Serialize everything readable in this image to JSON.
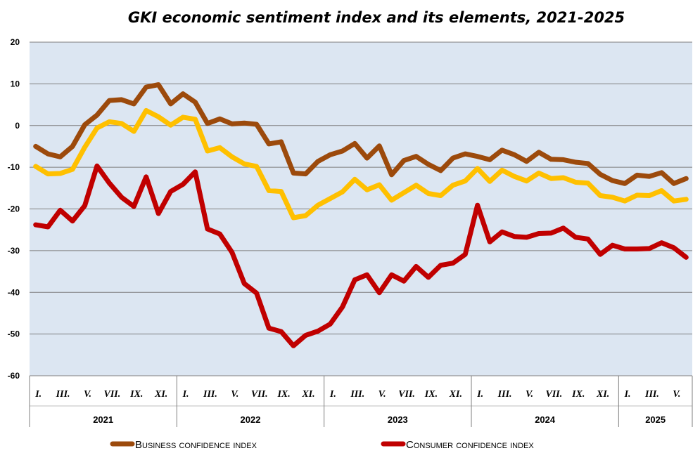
{
  "chart_data": {
    "type": "line",
    "title": "GKI economic sentiment index and its elements, 2021-2025",
    "ylim": [
      -60,
      20
    ],
    "yticks": [
      20,
      10,
      0,
      -10,
      -20,
      -30,
      -40,
      -50,
      -60
    ],
    "grid": true,
    "legend_position": "bottom",
    "years": [
      "2021",
      "2022",
      "2023",
      "2024",
      "2025"
    ],
    "month_labels": [
      "I.",
      "III.",
      "V.",
      "VII.",
      "IX.",
      "XI."
    ],
    "month_labels_last_year": [
      "I.",
      "III.",
      "V."
    ],
    "months_per_year": [
      12,
      12,
      12,
      12,
      6
    ],
    "series": [
      {
        "name": "BUSINESS CONFIDENCE INDEX",
        "legend_label": "Business confidence index",
        "in_legend": true,
        "color": "#9c4a0c",
        "values": [
          -5,
          -6.8,
          -7.5,
          -5,
          0.2,
          2.5,
          6,
          6.2,
          5.2,
          9.2,
          9.8,
          5.2,
          7.6,
          5.6,
          0.5,
          1.6,
          0.4,
          0.6,
          0.3,
          -4.4,
          -3.9,
          -11.4,
          -11.6,
          -8.6,
          -7,
          -6.1,
          -4.3,
          -7.8,
          -4.9,
          -11.8,
          -8.4,
          -7.4,
          -9.3,
          -10.8,
          -7.8,
          -6.8,
          -7.4,
          -8.2,
          -5.9,
          -7,
          -8.6,
          -6.4,
          -8.1,
          -8.2,
          -8.8,
          -9.1,
          -11.7,
          -13.2,
          -13.9,
          -11.9,
          -12.2,
          -11.3,
          -13.9,
          -12.7
        ]
      },
      {
        "name": "",
        "in_legend": false,
        "color": "#ffc000",
        "values": [
          -9.8,
          -11.6,
          -11.5,
          -10.5,
          -5.2,
          -0.6,
          0.9,
          0.5,
          -1.4,
          3.6,
          2.1,
          0.1,
          2,
          1.5,
          -6.1,
          -5.3,
          -7.5,
          -9.2,
          -9.8,
          -15.6,
          -15.8,
          -22.1,
          -21.6,
          -19.1,
          -17.5,
          -15.9,
          -12.9,
          -15.4,
          -14.2,
          -17.9,
          -16.1,
          -14.3,
          -16.3,
          -16.8,
          -14.3,
          -13.3,
          -10.3,
          -13.4,
          -10.7,
          -12.2,
          -13.3,
          -11.4,
          -12.7,
          -12.5,
          -13.6,
          -13.8,
          -16.8,
          -17.2,
          -18.1,
          -16.7,
          -16.8,
          -15.6,
          -18.1,
          -17.7
        ]
      },
      {
        "name": "CONSUMER CONFIDENCE INDEX",
        "legend_label": "Consumer confidence index",
        "in_legend": true,
        "color": "#c00000",
        "values": [
          -23.8,
          -24.3,
          -20.3,
          -22.9,
          -19.2,
          -9.7,
          -13.8,
          -17.2,
          -19.4,
          -12.3,
          -21.1,
          -15.8,
          -14.1,
          -11.1,
          -24.8,
          -26,
          -30.4,
          -37.9,
          -40.2,
          -48.6,
          -49.4,
          -52.8,
          -50.3,
          -49.3,
          -47.6,
          -43.5,
          -37,
          -35.8,
          -40.1,
          -35.8,
          -37.3,
          -33.8,
          -36.4,
          -33.5,
          -33,
          -30.9,
          -19.1,
          -27.9,
          -25.5,
          -26.6,
          -26.8,
          -25.9,
          -25.8,
          -24.6,
          -26.8,
          -27.2,
          -30.9,
          -28.7,
          -29.6,
          -29.6,
          -29.5,
          -28.1,
          -29.3,
          -31.6
        ]
      }
    ]
  }
}
